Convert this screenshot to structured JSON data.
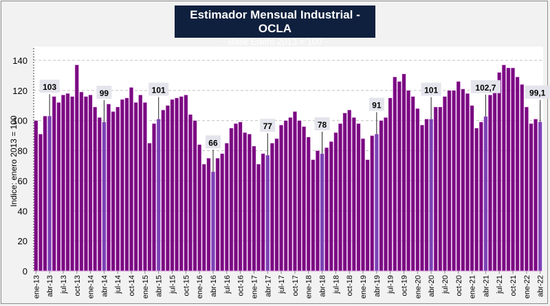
{
  "chart_data": {
    "type": "bar",
    "title": "Estimador Mensual Industrial - OCLA",
    "subtitle": "- Base Enero 2013 = 100 -",
    "xlabel": "",
    "ylabel": "Indice: enero 2013 = 100",
    "ylim": [
      0,
      140
    ],
    "yticks": [
      0,
      20,
      40,
      60,
      80,
      100,
      120,
      140
    ],
    "grid": true,
    "legend": "none",
    "colors": {
      "bar": "#7b0a82",
      "highlight": "#7b43b5",
      "bar_edge": "#e9b8ee",
      "label_bg": "#e4e4ec"
    },
    "x_tick_labels": [
      "ene-13",
      "abr-13",
      "jul-13",
      "oct-13",
      "ene-14",
      "abr-14",
      "jul-14",
      "oct-14",
      "ene-15",
      "abr-15",
      "jul-15",
      "oct-15",
      "ene-16",
      "abr-16",
      "jul-16",
      "oct-16",
      "ene-17",
      "abr-17",
      "jul-17",
      "oct-17",
      "ene-18",
      "abr-18",
      "jul-18",
      "oct-18",
      "ene-19",
      "abr-19",
      "jul-19",
      "oct-19",
      "ene-20",
      "abr-20",
      "jul-20",
      "oct-20",
      "ene-21",
      "abr-21",
      "jul-21",
      "oct-21",
      "ene-22",
      "abr-22"
    ],
    "start": "ene-13",
    "values": [
      100,
      91,
      103,
      103,
      116,
      112,
      117,
      118,
      116,
      137,
      119,
      116,
      117,
      109,
      102,
      99,
      111,
      106,
      109,
      114,
      115,
      122,
      112,
      117,
      112,
      85,
      98,
      101,
      107,
      110,
      114,
      115,
      116,
      117,
      104,
      100,
      84,
      71,
      75,
      66,
      75,
      78,
      85,
      95,
      98,
      99,
      92,
      91,
      83,
      71,
      78,
      77,
      85,
      88,
      97,
      100,
      102,
      106,
      100,
      96,
      89,
      74,
      80,
      78,
      82,
      86,
      92,
      98,
      105,
      107,
      102,
      98,
      88,
      74,
      90,
      91,
      100,
      102,
      115,
      129,
      126,
      131,
      120,
      116,
      108,
      97,
      101,
      101,
      109,
      109,
      116,
      120,
      120,
      126,
      121,
      118,
      110,
      95,
      99,
      102.7,
      117,
      119,
      132,
      137,
      135,
      135,
      129,
      124,
      109,
      98,
      101,
      99.1
    ],
    "annotations": [
      {
        "index": 3,
        "label": "103"
      },
      {
        "index": 15,
        "label": "99"
      },
      {
        "index": 27,
        "label": "101"
      },
      {
        "index": 39,
        "label": "66"
      },
      {
        "index": 51,
        "label": "77"
      },
      {
        "index": 63,
        "label": "78"
      },
      {
        "index": 75,
        "label": "91"
      },
      {
        "index": 87,
        "label": "101"
      },
      {
        "index": 99,
        "label": "102,7"
      },
      {
        "index": 111,
        "label": "99,1"
      }
    ]
  }
}
